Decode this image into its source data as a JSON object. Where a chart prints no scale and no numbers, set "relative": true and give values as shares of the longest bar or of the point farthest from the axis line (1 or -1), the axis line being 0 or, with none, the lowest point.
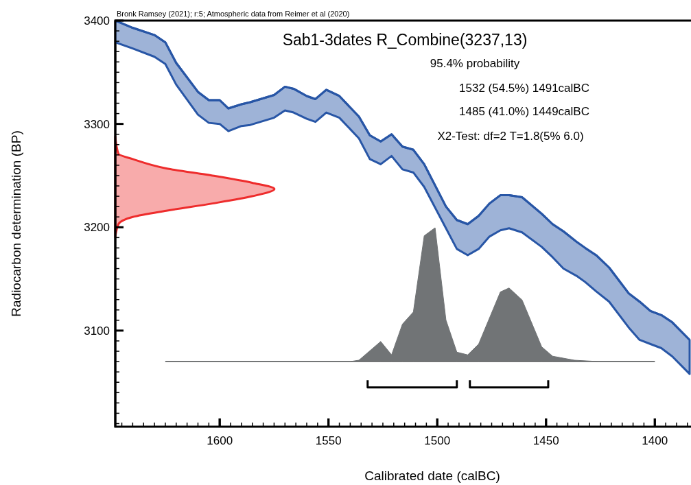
{
  "chart_data": [
    {
      "type": "line",
      "title": "Sab1-3dates R_Combine(3237,13)",
      "xlabel": "Calibrated date (calBC)",
      "ylabel": "Radiocarbon determination (BP)",
      "annotations": [
        "Bronk Ramsey (2021); r:5; Atmospheric data from Reimer et al (2020)",
        "95.4% probability",
        "1532 (54.5%) 1491calBC",
        "1485 (41.0%) 1449calBC",
        "X2-Test: df=2 T=1.8(5% 6.0)"
      ],
      "x": [
        1648,
        1640,
        1630,
        1625,
        1620,
        1610,
        1605,
        1600,
        1596,
        1590,
        1586,
        1575,
        1570,
        1566,
        1560,
        1556,
        1551,
        1545,
        1536,
        1531,
        1526,
        1521,
        1516,
        1511,
        1506,
        1496,
        1491,
        1486,
        1481,
        1476,
        1471,
        1467,
        1461,
        1452,
        1447,
        1442,
        1436,
        1432,
        1427,
        1421,
        1412,
        1407,
        1402,
        1397,
        1392,
        1384
      ],
      "series": [
        {
          "color": "#2856a6",
          "values": [
            3400,
            3393,
            3386,
            3379,
            3359,
            3331,
            3323,
            3323,
            3315,
            3319,
            3321,
            3328,
            3336,
            3334,
            3327,
            3324,
            3333,
            3327,
            3307,
            3289,
            3283,
            3290,
            3278,
            3275,
            3261,
            3220,
            3207,
            3203,
            3211,
            3223,
            3231,
            3231,
            3229,
            3213,
            3203,
            3196,
            3186,
            3180,
            3173,
            3161,
            3136,
            3128,
            3119,
            3115,
            3108,
            3091
          ],
          "upper": [
            3400,
            3393,
            3386,
            3379,
            3359,
            3331,
            3323,
            3323,
            3315,
            3319,
            3321,
            3328,
            3336,
            3334,
            3327,
            3324,
            3333,
            3327,
            3307,
            3289,
            3283,
            3290,
            3278,
            3275,
            3261,
            3220,
            3207,
            3203,
            3211,
            3223,
            3231,
            3231,
            3229,
            3213,
            3203,
            3196,
            3186,
            3180,
            3173,
            3161,
            3136,
            3128,
            3119,
            3115,
            3108,
            3091
          ],
          "lower": [
            3379,
            3373,
            3365,
            3358,
            3338,
            3309,
            3301,
            3300,
            3293,
            3298,
            3299,
            3306,
            3313,
            3311,
            3305,
            3302,
            3311,
            3306,
            3286,
            3266,
            3261,
            3269,
            3256,
            3253,
            3239,
            3199,
            3179,
            3173,
            3179,
            3191,
            3197,
            3199,
            3195,
            3181,
            3171,
            3160,
            3153,
            3147,
            3138,
            3128,
            3103,
            3091,
            3087,
            3083,
            3075,
            3058
          ]
        },
        {
          "color": "#000000",
          "x": [
            1532,
            1532,
            1491,
            1491
          ],
          "values": [
            3052,
            3045,
            3045,
            3052
          ]
        },
        {
          "color": "#000000",
          "x": [
            1485,
            1485,
            1449,
            1449
          ],
          "values": [
            3052,
            3045,
            3045,
            3052
          ]
        }
      ],
      "xlim": [
        1648,
        1384
      ],
      "ylim": [
        3007,
        3400
      ],
      "xticks": [
        {
          "value": 1645,
          "label": null
        },
        {
          "value": 1640,
          "label": null
        },
        {
          "value": 1635,
          "label": null
        },
        {
          "value": 1630,
          "label": null
        },
        {
          "value": 1625,
          "label": null
        },
        {
          "value": 1620,
          "label": null
        },
        {
          "value": 1615,
          "label": null
        },
        {
          "value": 1610,
          "label": null
        },
        {
          "value": 1605,
          "label": null
        },
        1600,
        {
          "value": 1595,
          "label": null
        },
        {
          "value": 1590,
          "label": null
        },
        {
          "value": 1585,
          "label": null
        },
        {
          "value": 1580,
          "label": null
        },
        {
          "value": 1575,
          "label": null
        },
        {
          "value": 1570,
          "label": null
        },
        {
          "value": 1565,
          "label": null
        },
        {
          "value": 1560,
          "label": null
        },
        {
          "value": 1555,
          "label": null
        },
        1550,
        {
          "value": 1545,
          "label": null
        },
        {
          "value": 1540,
          "label": null
        },
        {
          "value": 1535,
          "label": null
        },
        {
          "value": 1530,
          "label": null
        },
        {
          "value": 1525,
          "label": null
        },
        {
          "value": 1520,
          "label": null
        },
        {
          "value": 1515,
          "label": null
        },
        {
          "value": 1510,
          "label": null
        },
        {
          "value": 1505,
          "label": null
        },
        1500,
        {
          "value": 1495,
          "label": null
        },
        {
          "value": 1490,
          "label": null
        },
        {
          "value": 1485,
          "label": null
        },
        {
          "value": 1480,
          "label": null
        },
        {
          "value": 1475,
          "label": null
        },
        {
          "value": 1470,
          "label": null
        },
        {
          "value": 1465,
          "label": null
        },
        {
          "value": 1460,
          "label": null
        },
        {
          "value": 1455,
          "label": null
        },
        1450,
        {
          "value": 1445,
          "label": null
        },
        {
          "value": 1440,
          "label": null
        },
        {
          "value": 1435,
          "label": null
        },
        {
          "value": 1430,
          "label": null
        },
        {
          "value": 1425,
          "label": null
        },
        {
          "value": 1420,
          "label": null
        },
        {
          "value": 1415,
          "label": null
        },
        {
          "value": 1410,
          "label": null
        },
        {
          "value": 1405,
          "label": null
        },
        1400,
        {
          "value": 1395,
          "label": null
        },
        {
          "value": 1390,
          "label": null
        },
        {
          "value": 1385,
          "label": null
        }
      ],
      "yticks": [
        {
          "value": 3010,
          "label": null
        },
        {
          "value": 3020,
          "label": null
        },
        {
          "value": 3030,
          "label": null
        },
        {
          "value": 3040,
          "label": null
        },
        {
          "value": 3050,
          "label": null
        },
        {
          "value": 3060,
          "label": null
        },
        {
          "value": 3070,
          "label": null
        },
        {
          "value": 3080,
          "label": null
        },
        {
          "value": 3090,
          "label": null
        },
        3100,
        {
          "value": 3110,
          "label": null
        },
        {
          "value": 3120,
          "label": null
        },
        {
          "value": 3130,
          "label": null
        },
        {
          "value": 3140,
          "label": null
        },
        {
          "value": 3150,
          "label": null
        },
        {
          "value": 3160,
          "label": null
        },
        {
          "value": 3170,
          "label": null
        },
        {
          "value": 3180,
          "label": null
        },
        {
          "value": 3190,
          "label": null
        },
        3200,
        {
          "value": 3210,
          "label": null
        },
        {
          "value": 3220,
          "label": null
        },
        {
          "value": 3230,
          "label": null
        },
        {
          "value": 3240,
          "label": null
        },
        {
          "value": 3250,
          "label": null
        },
        {
          "value": 3260,
          "label": null
        },
        {
          "value": 3270,
          "label": null
        },
        {
          "value": 3280,
          "label": null
        },
        {
          "value": 3290,
          "label": null
        },
        3300,
        {
          "value": 3310,
          "label": null
        },
        {
          "value": 3320,
          "label": null
        },
        {
          "value": 3330,
          "label": null
        },
        {
          "value": 3340,
          "label": null
        },
        {
          "value": 3350,
          "label": null
        },
        {
          "value": 3360,
          "label": null
        },
        {
          "value": 3370,
          "label": null
        },
        {
          "value": 3380,
          "label": null
        },
        {
          "value": 3390,
          "label": null
        },
        3400
      ]
    },
    {
      "type": "area",
      "relative": true,
      "tick_labels": false,
      "xlim": [
        1625,
        1400
      ],
      "xticks": [
        1600,
        1550,
        1500,
        1450,
        1400
      ],
      "color": "#717476",
      "x": [
        1625,
        1540,
        1536,
        1526,
        1521,
        1516,
        1511,
        1506,
        1501,
        1496,
        1491,
        1486,
        1481,
        1471,
        1467,
        1461,
        1452,
        1447,
        1437,
        1426,
        1400
      ],
      "values": [
        0,
        0,
        0.01,
        0.15,
        0.05,
        0.28,
        0.37,
        0.94,
        1,
        0.31,
        0.07,
        0.05,
        0.13,
        0.52,
        0.55,
        0.46,
        0.11,
        0.04,
        0.01,
        0,
        0
      ]
    },
    {
      "type": "area",
      "relative": true,
      "tick_labels": false,
      "orientation": "horizontal",
      "ylim": [
        3007,
        3400
      ],
      "color": "#ee2c2c",
      "x": [
        3288,
        3271,
        3266,
        3257,
        3250,
        3243,
        3237,
        3230,
        3223,
        3216,
        3210,
        3203,
        3190
      ],
      "values": [
        0,
        0.02,
        0.11,
        0.32,
        0.61,
        0.86,
        1,
        0.86,
        0.61,
        0.32,
        0.11,
        0.02,
        0
      ]
    }
  ]
}
